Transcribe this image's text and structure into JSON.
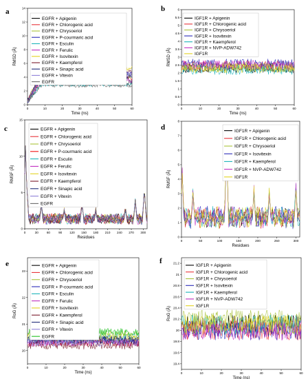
{
  "figure": {
    "panel_letters": [
      "a",
      "b",
      "c",
      "d",
      "e",
      "f"
    ]
  },
  "chart_data": [
    {
      "id": "a",
      "type": "line",
      "xlabel": "Time (ns)",
      "ylabel": "RMSD (Å)",
      "xlim": [
        0,
        60
      ],
      "ylim": [
        0,
        14
      ],
      "xticks": [
        0,
        10,
        20,
        30,
        40,
        50,
        60
      ],
      "yticks": [
        0,
        2,
        4,
        6,
        8,
        10,
        12,
        14
      ],
      "legend_position": "top-left",
      "series": [
        {
          "name": "EGFR + Apigenin",
          "color": "#000000",
          "level": 3.3,
          "noise": 0.4
        },
        {
          "name": "EGFR + Chlorogenic acid",
          "color": "#e8343a",
          "level": 3.8,
          "noise": 0.4
        },
        {
          "name": "EGFR + Chrysoeriol",
          "color": "#a8c23a",
          "level": 4.2,
          "noise": 0.4
        },
        {
          "name": "EGFR + P-courmaric acid",
          "color": "#2a2ab8",
          "level": 4.6,
          "noise": 0.4
        },
        {
          "name": "EGFR + Esculin",
          "color": "#18b2b8",
          "level": 3.0,
          "noise": 0.35
        },
        {
          "name": "EGFR + Ferulic",
          "color": "#c02cc0",
          "level": 3.5,
          "noise": 0.4
        },
        {
          "name": "EGFR + Isovitexin",
          "color": "#e3d21f",
          "level": 5.3,
          "noise": 0.35
        },
        {
          "name": "EGFR + Kaempferol",
          "color": "#7a1a2a",
          "level": 4.9,
          "noise": 0.35
        },
        {
          "name": "EGFR + Sinapic acid",
          "color": "#1f2a78",
          "level": 4.0,
          "noise": 0.4
        },
        {
          "name": "EGFR + Vitexin",
          "color": "#8e7fd8",
          "level": 4.4,
          "noise": 0.4
        },
        {
          "name": "EGFR",
          "color": "#6a6a6a",
          "level": 2.8,
          "noise": 0.3
        }
      ]
    },
    {
      "id": "b",
      "type": "line",
      "xlabel": "Time (ns)",
      "ylabel": "RMSD (Å)",
      "xlim": [
        0,
        60
      ],
      "ylim": [
        0,
        6
      ],
      "xticks": [
        0,
        10,
        20,
        30,
        40,
        50,
        60
      ],
      "yticks": [
        0,
        0.5,
        1.0,
        1.5,
        2.0,
        2.5,
        3.0,
        3.5,
        4.0,
        4.5,
        5.0,
        5.5,
        6.0
      ],
      "legend_position": "top-left",
      "series": [
        {
          "name": "IGF1R + Apigenin",
          "color": "#000000",
          "level": 2.3,
          "noise": 0.3
        },
        {
          "name": "IGF1R + Chlorogenic acid",
          "color": "#e8343a",
          "level": 2.5,
          "noise": 0.3
        },
        {
          "name": "IGF1R + Chrysoeriol",
          "color": "#a8c23a",
          "level": 2.4,
          "noise": 0.3
        },
        {
          "name": "IGF1R + Isovitexin",
          "color": "#2a2ab8",
          "level": 2.6,
          "noise": 0.3
        },
        {
          "name": "IGF1R + Kaempferol",
          "color": "#18b2b8",
          "level": 2.2,
          "noise": 0.3
        },
        {
          "name": "IGF1R + NVP-ADW742",
          "color": "#c02cc0",
          "level": 2.5,
          "noise": 0.3
        },
        {
          "name": "IGF1R",
          "color": "#e3d21f",
          "level": 2.3,
          "noise": 0.3
        }
      ]
    },
    {
      "id": "c",
      "type": "line",
      "xlabel": "Residues",
      "ylabel": "RMSF (Å)",
      "xlim": [
        0,
        310
      ],
      "ylim": [
        0,
        15
      ],
      "xticks": [
        0,
        30,
        60,
        90,
        120,
        150,
        180,
        210,
        240,
        270,
        300
      ],
      "yticks": [
        0,
        5,
        10,
        15
      ],
      "legend_position": "top-left",
      "series": [
        {
          "name": "EGFR + Apigenin",
          "color": "#000000"
        },
        {
          "name": "EGFR + Chlorogenic acid",
          "color": "#e8343a"
        },
        {
          "name": "EGFR + Chrysoeriol",
          "color": "#a8c23a"
        },
        {
          "name": "EGFR + P-courmaric acid",
          "color": "#f01010"
        },
        {
          "name": "EGFR + Esculin",
          "color": "#18b2b8"
        },
        {
          "name": "EGFR + Ferulic",
          "color": "#c02cc0"
        },
        {
          "name": "EGFR + Isovitexin",
          "color": "#e3d21f"
        },
        {
          "name": "EGFR + Kaempferol",
          "color": "#7a1a2a"
        },
        {
          "name": "EGFR + Sinapic acid",
          "color": "#1f2a78"
        },
        {
          "name": "EGFR + Vitexin",
          "color": "#8e7fd8"
        },
        {
          "name": "EGFR",
          "color": "#6a6a6a"
        }
      ],
      "peaks": [
        [
          2,
          11
        ],
        [
          5,
          6
        ],
        [
          42,
          3.2
        ],
        [
          100,
          2.4
        ],
        [
          145,
          3.3
        ],
        [
          180,
          2.4
        ],
        [
          255,
          2.6
        ],
        [
          280,
          3.6
        ],
        [
          303,
          5.2
        ]
      ]
    },
    {
      "id": "d",
      "type": "line",
      "xlabel": "Residues",
      "ylabel": "RMSF (Å)",
      "xlim": [
        0,
        310
      ],
      "ylim": [
        0,
        8
      ],
      "xticks": [
        0,
        50,
        100,
        150,
        200,
        250,
        300
      ],
      "yticks": [
        0,
        1,
        2,
        3,
        4,
        5,
        6,
        7,
        8
      ],
      "legend_position": "top-right",
      "series": [
        {
          "name": "IGF1R + Apigenin",
          "color": "#000000"
        },
        {
          "name": "IGF1R + Chlorogenic acid",
          "color": "#e8343a"
        },
        {
          "name": "IGF1R + Chrysoeriol",
          "color": "#a8c23a"
        },
        {
          "name": "IGF1R + Isovitexin",
          "color": "#2a2ab8"
        },
        {
          "name": "IGF1R + Kaempferol",
          "color": "#18b2b8"
        },
        {
          "name": "IGF1R + NVP-ADW742",
          "color": "#c02cc0"
        },
        {
          "name": "IGF1R",
          "color": "#e3d21f"
        }
      ],
      "peaks": [
        [
          2,
          4.2
        ],
        [
          30,
          2.8
        ],
        [
          118,
          6.8
        ],
        [
          190,
          3.0
        ],
        [
          230,
          2.8
        ],
        [
          300,
          3.2
        ]
      ]
    },
    {
      "id": "e",
      "type": "line",
      "xlabel": "Time (ns)",
      "ylabel": "RoG (Å)",
      "xlim": [
        0,
        60
      ],
      "ylim": [
        19.5,
        23.5
      ],
      "xticks": [
        0,
        10,
        20,
        30,
        40,
        50,
        60
      ],
      "yticks": [
        20,
        21,
        22,
        23
      ],
      "legend_position": "top-left",
      "series": [
        {
          "name": "EGFR + Apigenin",
          "color": "#000000",
          "level": 20.4,
          "noise": 0.15
        },
        {
          "name": "EGFR + Chlorogenic acid",
          "color": "#e8343a",
          "level": 20.3,
          "noise": 0.15
        },
        {
          "name": "EGFR + Chrysoeriol",
          "color": "#a8c23a",
          "level": 20.6,
          "noise": 0.15
        },
        {
          "name": "EGFR + P-courmaric acid",
          "color": "#2a2ab8",
          "level": 20.4,
          "noise": 0.15
        },
        {
          "name": "EGFR + Esculin",
          "color": "#18b2b8",
          "level": 20.5,
          "noise": 0.15
        },
        {
          "name": "EGFR + Ferulic",
          "color": "#c02cc0",
          "level": 20.3,
          "noise": 0.15
        },
        {
          "name": "EGFR + Isovitexin",
          "color": "#e3d21f",
          "level": 20.5,
          "noise": 0.15
        },
        {
          "name": "EGFR + Kaempferol",
          "color": "#7a1a2a",
          "level": 20.2,
          "noise": 0.15
        },
        {
          "name": "EGFR + Sinapic acid",
          "color": "#1f2a78",
          "level": 20.4,
          "noise": 0.15
        },
        {
          "name": "EGFR + Vitexin",
          "color": "#8e7fd8",
          "level": 20.3,
          "noise": 0.15
        },
        {
          "name": "EGFR",
          "color": "#20c020",
          "level": 20.7,
          "noise": 0.15
        }
      ]
    },
    {
      "id": "f",
      "type": "line",
      "xlabel": "Time (ns)",
      "ylabel": "RoG (Å)",
      "xlim": [
        0,
        60
      ],
      "ylim": [
        19.3,
        21.3
      ],
      "xticks": [
        0,
        10,
        20,
        30,
        40,
        50,
        60
      ],
      "yticks": [
        19.4,
        19.6,
        19.8,
        20.0,
        20.2,
        20.4,
        20.6,
        20.8,
        21.0,
        21.2
      ],
      "legend_position": "top-left",
      "series": [
        {
          "name": "IGF1R + Apigenin",
          "color": "#000000",
          "level": 20.1,
          "noise": 0.18
        },
        {
          "name": "IGF1R + Chlorogenic acid",
          "color": "#e8343a",
          "level": 20.0,
          "noise": 0.18
        },
        {
          "name": "IGF1R + Chrysoeriol",
          "color": "#a8c23a",
          "level": 20.2,
          "noise": 0.18
        },
        {
          "name": "IGF1R + Isovitexin",
          "color": "#2a2ab8",
          "level": 20.0,
          "noise": 0.18
        },
        {
          "name": "IGF1R + Kaempferol",
          "color": "#18b2b8",
          "level": 20.1,
          "noise": 0.18
        },
        {
          "name": "IGF1R + NVP-ADW742",
          "color": "#c02cc0",
          "level": 20.0,
          "noise": 0.18
        },
        {
          "name": "IGF1R",
          "color": "#e3d21f",
          "level": 20.1,
          "noise": 0.18
        }
      ]
    }
  ]
}
